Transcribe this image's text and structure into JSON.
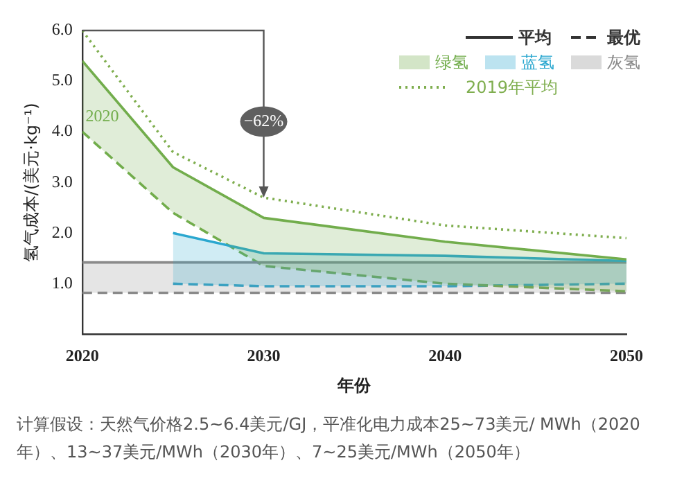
{
  "chart_data": {
    "type": "line",
    "xlabel": "年份",
    "ylabel": "氢气成本/(美元·kg⁻¹)",
    "xlim": [
      2020,
      2050
    ],
    "xticks": [
      2020,
      2030,
      2040,
      2050
    ],
    "ylim": [
      0,
      6
    ],
    "yticks": [
      {
        "value": 1,
        "label": "1.0"
      },
      {
        "value": 2,
        "label": "2.0"
      },
      {
        "value": 3,
        "label": "3.0"
      },
      {
        "value": 4,
        "label": "4.0"
      },
      {
        "value": 5,
        "label": "5.0"
      },
      {
        "value": 6,
        "label": "6.0"
      }
    ],
    "grid": false,
    "legend": "top right",
    "marker": "none",
    "series": [
      {
        "name": "绿氢",
        "color": "#72ad4c",
        "x": [
          2020,
          2025,
          2030,
          2040,
          2050
        ],
        "values": [
          5.4,
          3.3,
          2.3,
          1.83,
          1.48
        ],
        "upper": [
          5.4,
          3.3,
          2.3,
          1.83,
          1.48
        ],
        "lower": [
          4.0,
          2.4,
          1.35,
          1.0,
          0.85
        ],
        "line_style": "solid"
      },
      {
        "name": "蓝氢",
        "color": "#2aa7cf",
        "x": [
          2025,
          2030,
          2040,
          2050
        ],
        "values": [
          2.0,
          1.6,
          1.55,
          1.45
        ],
        "upper": [
          2.0,
          1.6,
          1.55,
          1.45
        ],
        "lower": [
          1.0,
          0.95,
          0.95,
          1.0
        ],
        "line_style": "solid"
      },
      {
        "name": "灰氢",
        "color": "#8a8a8a",
        "x": [
          2020,
          2050
        ],
        "values": [
          1.42,
          1.42
        ],
        "upper": [
          1.42,
          1.42
        ],
        "lower": [
          0.82,
          0.82
        ],
        "line_style": "solid"
      },
      {
        "color": "#72ad4c",
        "x": [
          2020,
          2025,
          2030,
          2040,
          2050
        ],
        "values": [
          4.0,
          2.4,
          1.35,
          1.0,
          0.85
        ],
        "line_style": "dashed"
      },
      {
        "color": "#2aa7cf",
        "x": [
          2025,
          2030,
          2040,
          2050
        ],
        "values": [
          1.0,
          0.95,
          0.95,
          1.0
        ],
        "line_style": "dashed"
      },
      {
        "color": "#8a8a8a",
        "x": [
          2020,
          2050
        ],
        "values": [
          0.82,
          0.82
        ],
        "line_style": "dashed"
      },
      {
        "name": "2019年平均",
        "color": "#7fae4f",
        "x": [
          2020,
          2025,
          2030,
          2040,
          2050
        ],
        "values": [
          6.0,
          3.6,
          2.7,
          2.15,
          1.9
        ],
        "line_style": "dotted"
      }
    ],
    "annotations": [
      "平均",
      "最优",
      "2020",
      {
        "text": "−62%",
        "x": 2030,
        "y": 4.2
      },
      "计算假设：天然气价格2.5~6.4美元/GJ，平准化电力成本25~73美元/ MWh（2020年）、13~37美元/MWh（2030年）、7~25美元/MWh（2050年）"
    ]
  }
}
